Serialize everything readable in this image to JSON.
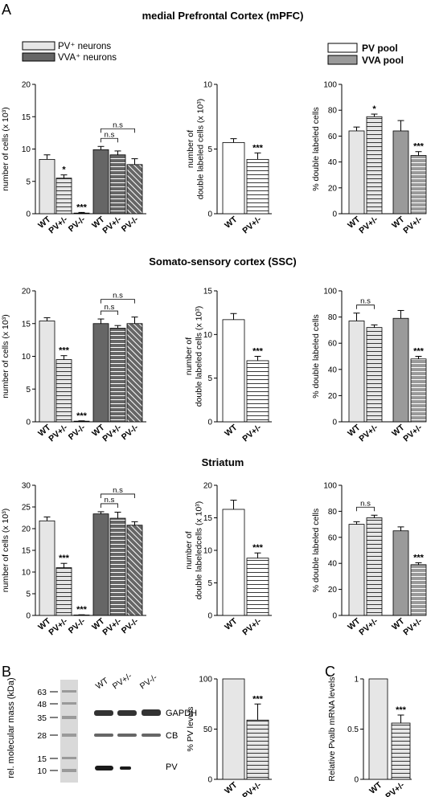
{
  "panel_letters": {
    "A": "A",
    "B": "B",
    "C": "C"
  },
  "sections": {
    "mpfc": "medial Prefrontal Cortex (mPFC)",
    "ssc": "Somato-sensory cortex (SSC)",
    "striatum": "Striatum"
  },
  "legend_left": {
    "pv": "PV⁺  neurons",
    "vva": "VVA⁺ neurons"
  },
  "legend_right": {
    "pv": "PV pool",
    "vva": "VVA pool"
  },
  "colors": {
    "light_gray": "#e6e6e6",
    "dark_gray": "#666666",
    "mid_gray": "#9a9a9a",
    "white": "#ffffff",
    "stroke": "#000000"
  },
  "chart_data": [
    {
      "id": "mpfc_cells",
      "type": "bar",
      "ylabel": "number of cells (x 10³)",
      "ylim": [
        0,
        20
      ],
      "yticks": [
        0,
        5,
        10,
        15,
        20
      ],
      "categories": [
        "WT",
        "PV+/-",
        "PV-/-",
        "WT",
        "PV+/-",
        "PV-/-"
      ],
      "values": [
        8.4,
        5.5,
        0.1,
        9.9,
        9.1,
        7.6
      ],
      "errors": [
        0.7,
        0.5,
        0.1,
        0.5,
        0.6,
        0.9
      ],
      "fills": [
        "light",
        "hatch-h-light",
        "hatch-h-light",
        "dark",
        "hatch-h-dark",
        "hatch-d-dark"
      ],
      "sig": [
        "",
        "*",
        "***",
        "",
        "",
        ""
      ],
      "brackets": [
        {
          "from": 3,
          "to": 4,
          "label": "n.s"
        },
        {
          "from": 3,
          "to": 5,
          "label": "n.s"
        }
      ]
    },
    {
      "id": "mpfc_double",
      "type": "bar",
      "ylabel": "number of double labeled cells (x 10³)",
      "ylim": [
        0,
        10
      ],
      "yticks": [
        0,
        5,
        10
      ],
      "categories": [
        "WT",
        "PV+/-"
      ],
      "values": [
        5.5,
        4.2
      ],
      "errors": [
        0.3,
        0.5
      ],
      "fills": [
        "white",
        "hatch-h-white"
      ],
      "sig": [
        "",
        "***"
      ],
      "brackets": []
    },
    {
      "id": "mpfc_pct",
      "type": "bar",
      "ylabel": "% double labeled cells",
      "ylim": [
        0,
        100
      ],
      "yticks": [
        0,
        20,
        40,
        60,
        80,
        100
      ],
      "categories": [
        "WT",
        "PV+/-",
        "WT",
        "PV+/-"
      ],
      "values": [
        64,
        75,
        64,
        45
      ],
      "errors": [
        3,
        2,
        8,
        3
      ],
      "fills": [
        "light",
        "hatch-h-light",
        "mid",
        "hatch-h-mid"
      ],
      "sig": [
        "",
        "*",
        "",
        "***"
      ],
      "brackets": []
    },
    {
      "id": "ssc_cells",
      "type": "bar",
      "ylabel": "number of cells (x 10³)",
      "ylim": [
        0,
        20
      ],
      "yticks": [
        0,
        5,
        10,
        15,
        20
      ],
      "categories": [
        "WT",
        "PV+/-",
        "PV-/-",
        "WT",
        "PV+/-",
        "PV-/-"
      ],
      "values": [
        15.4,
        9.5,
        0.1,
        15.0,
        14.3,
        15.0
      ],
      "errors": [
        0.5,
        0.6,
        0.05,
        0.7,
        0.4,
        1.0
      ],
      "fills": [
        "light",
        "hatch-h-light",
        "hatch-h-light",
        "dark",
        "hatch-h-dark",
        "hatch-d-dark"
      ],
      "sig": [
        "",
        "***",
        "***",
        "",
        "",
        ""
      ],
      "brackets": [
        {
          "from": 3,
          "to": 4,
          "label": "n.s"
        },
        {
          "from": 3,
          "to": 5,
          "label": "n.s"
        }
      ]
    },
    {
      "id": "ssc_double",
      "type": "bar",
      "ylabel": "number of double labeled cells (x 10³)",
      "ylim": [
        0,
        15
      ],
      "yticks": [
        0,
        5,
        10,
        15
      ],
      "categories": [
        "WT",
        "PV+/-"
      ],
      "values": [
        11.7,
        7.0
      ],
      "errors": [
        0.7,
        0.5
      ],
      "fills": [
        "white",
        "hatch-h-white"
      ],
      "sig": [
        "",
        "***"
      ],
      "brackets": []
    },
    {
      "id": "ssc_pct",
      "type": "bar",
      "ylabel": "% double labeled cells",
      "ylim": [
        0,
        100
      ],
      "yticks": [
        0,
        20,
        40,
        60,
        80,
        100
      ],
      "categories": [
        "WT",
        "PV+/-",
        "WT",
        "PV+/-"
      ],
      "values": [
        77,
        72,
        79,
        48
      ],
      "errors": [
        6,
        2,
        6,
        2
      ],
      "fills": [
        "light",
        "hatch-h-light",
        "mid",
        "hatch-h-mid"
      ],
      "sig": [
        "",
        "",
        "",
        "***"
      ],
      "brackets": [
        {
          "from": 0,
          "to": 1,
          "label": "n.s"
        }
      ]
    },
    {
      "id": "str_cells",
      "type": "bar",
      "ylabel": "number of cells (x 10³)",
      "ylim": [
        0,
        30
      ],
      "yticks": [
        0,
        5,
        10,
        15,
        20,
        25,
        30
      ],
      "categories": [
        "WT",
        "PV+/-",
        "PV-/-",
        "WT",
        "PV+/-",
        "PV-/-"
      ],
      "values": [
        21.8,
        11.0,
        0.1,
        23.4,
        22.4,
        20.8
      ],
      "errors": [
        0.9,
        1.0,
        0.05,
        0.5,
        1.4,
        0.8
      ],
      "fills": [
        "light",
        "hatch-h-light",
        "hatch-h-light",
        "dark",
        "hatch-h-dark",
        "hatch-d-dark"
      ],
      "sig": [
        "",
        "***",
        "***",
        "",
        "",
        ""
      ],
      "brackets": [
        {
          "from": 3,
          "to": 4,
          "label": "n.s"
        },
        {
          "from": 3,
          "to": 5,
          "label": "n.s"
        }
      ]
    },
    {
      "id": "str_double",
      "type": "bar",
      "ylabel": "number of double labeledcells (x 10³)",
      "ylim": [
        0,
        20
      ],
      "yticks": [
        0,
        5,
        10,
        15,
        20
      ],
      "categories": [
        "WT",
        "PV+/-"
      ],
      "values": [
        16.3,
        8.8
      ],
      "errors": [
        1.4,
        0.8
      ],
      "fills": [
        "white",
        "hatch-h-white"
      ],
      "sig": [
        "",
        "***"
      ],
      "brackets": []
    },
    {
      "id": "str_pct",
      "type": "bar",
      "ylabel": "% double labeled cells",
      "ylim": [
        0,
        100
      ],
      "yticks": [
        0,
        20,
        40,
        60,
        80,
        100
      ],
      "categories": [
        "WT",
        "PV+/-",
        "WT",
        "PV+/-"
      ],
      "values": [
        70,
        75,
        65,
        39
      ],
      "errors": [
        2,
        2,
        3,
        1.5
      ],
      "fills": [
        "light",
        "hatch-h-light",
        "mid",
        "hatch-h-mid"
      ],
      "sig": [
        "",
        "",
        "",
        "***"
      ],
      "brackets": [
        {
          "from": 0,
          "to": 1,
          "label": "n.s"
        }
      ]
    },
    {
      "id": "b_pv",
      "type": "bar",
      "ylabel": "% PV levels",
      "ylim": [
        0,
        100
      ],
      "yticks": [
        0,
        50,
        100
      ],
      "categories": [
        "WT",
        "PV+/-"
      ],
      "values": [
        100,
        59
      ],
      "errors": [
        0,
        16
      ],
      "fills": [
        "light",
        "hatch-h-light"
      ],
      "sig": [
        "",
        "***"
      ],
      "brackets": []
    },
    {
      "id": "c_mrna",
      "type": "bar",
      "ylabel": "Relative Pvalb mRNA levels",
      "ylim": [
        0,
        1.0
      ],
      "yticks": [
        0,
        0.5,
        1.0
      ],
      "categories": [
        "WT",
        "PV+/-"
      ],
      "values": [
        1.0,
        0.56
      ],
      "errors": [
        0,
        0.08
      ],
      "fills": [
        "light",
        "hatch-h-light"
      ],
      "sig": [
        "",
        "***"
      ],
      "brackets": []
    }
  ],
  "western_blot": {
    "ylabel": "rel. molecular mass (kDa)",
    "markers": [
      "63",
      "48",
      "35",
      "28",
      "15",
      "10"
    ],
    "lanes": [
      "WT",
      "PV+/-",
      "PV-/-"
    ],
    "bands": [
      "GAPDH",
      "CB",
      "PV"
    ]
  }
}
